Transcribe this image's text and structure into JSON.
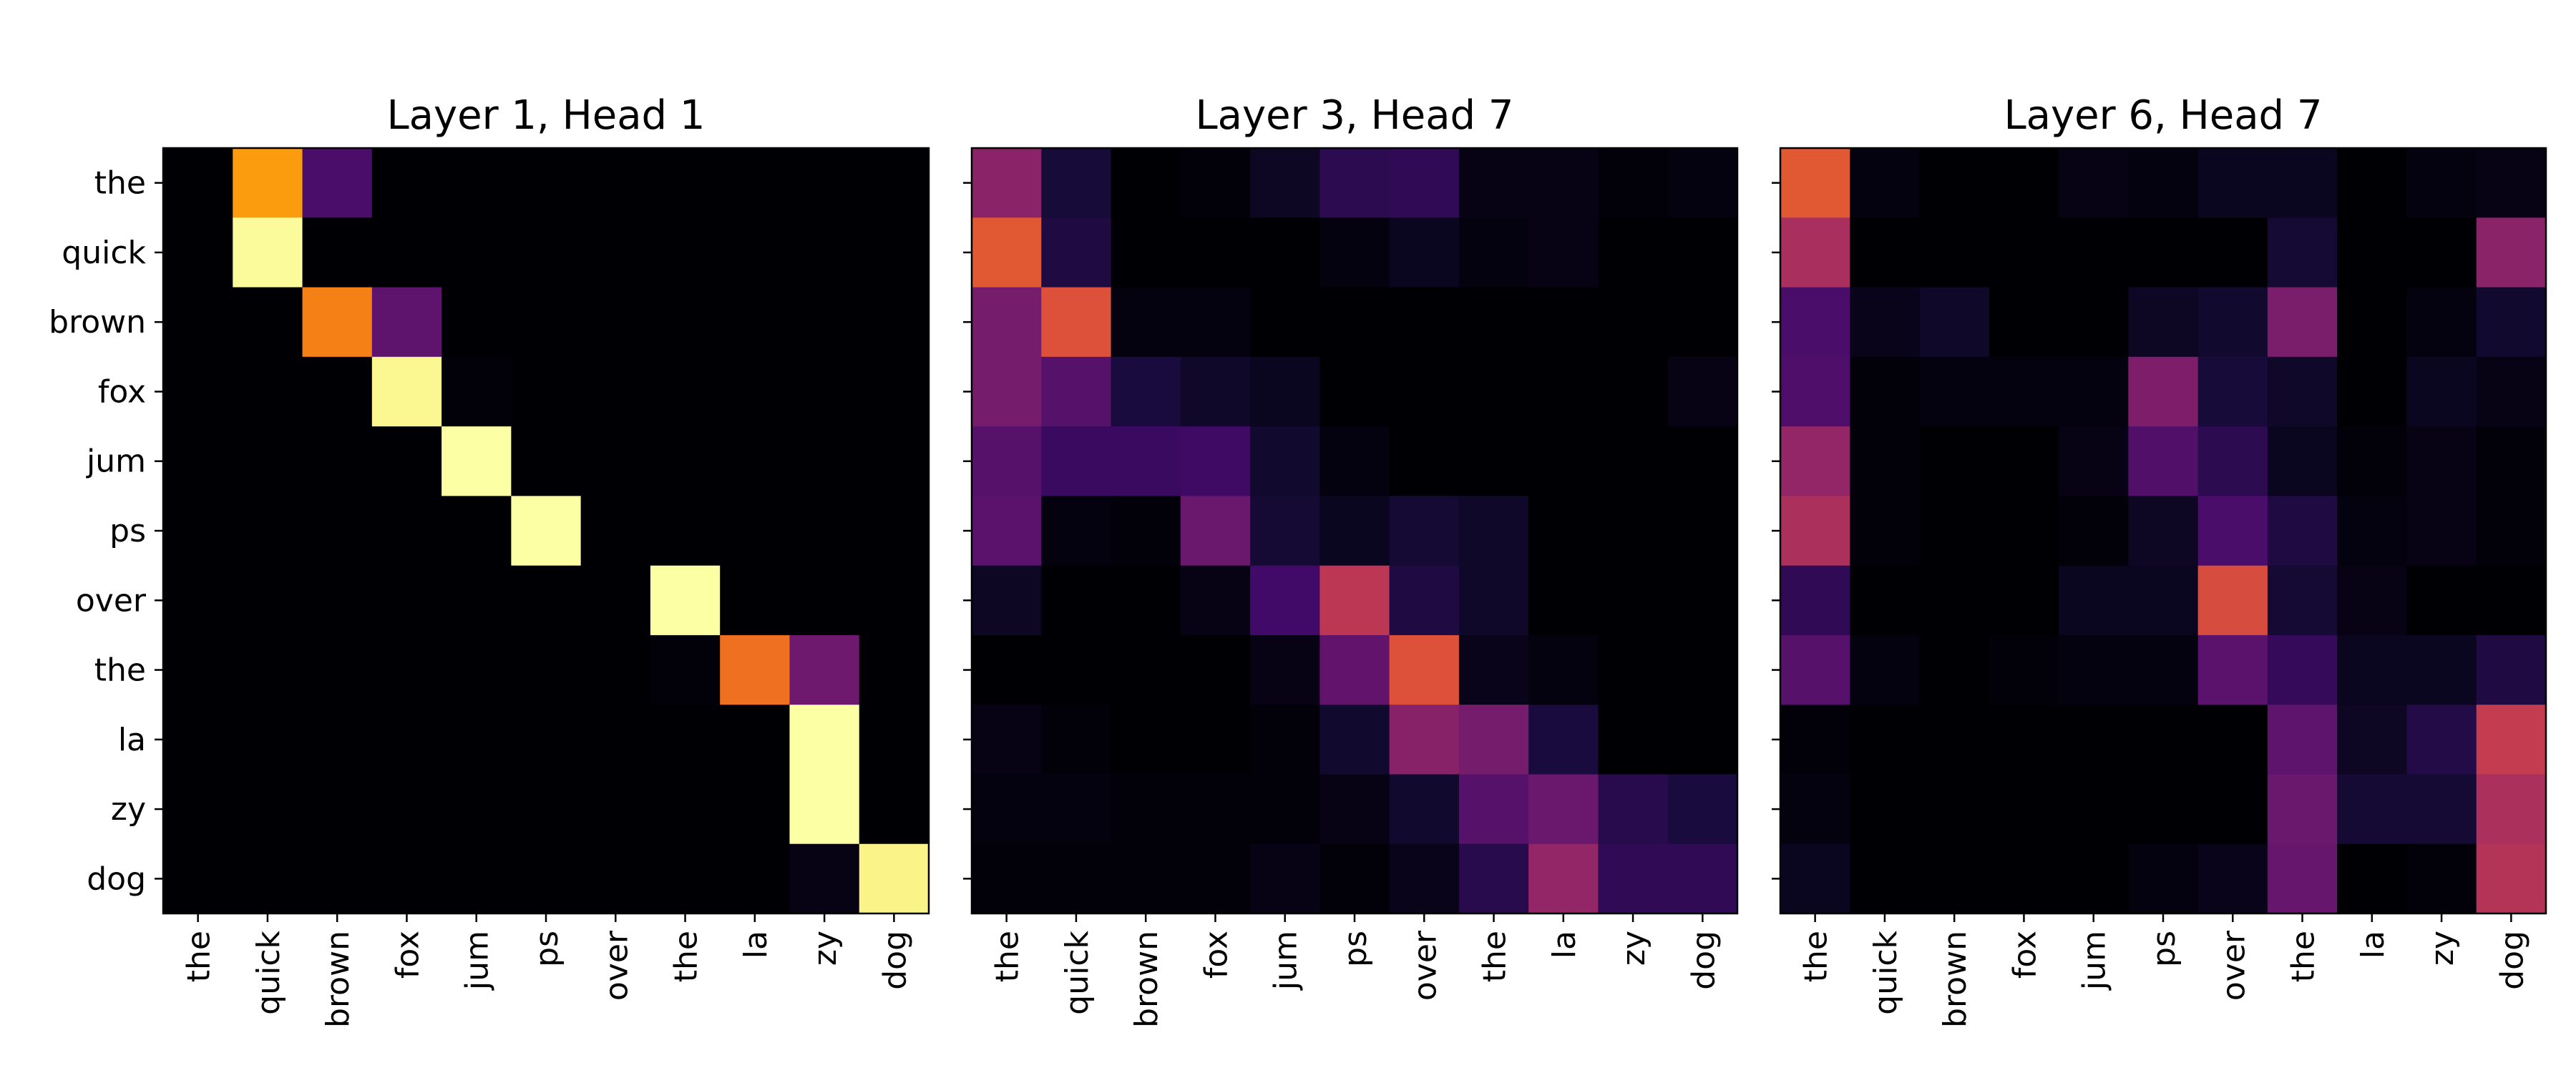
{
  "chart_data": [
    {
      "type": "heatmap",
      "title": "Layer 1, Head 1",
      "x_labels": [
        "the",
        "quick",
        "brown",
        "fox",
        "jum",
        "ps",
        "over",
        "the",
        "la",
        "zy",
        "dog"
      ],
      "y_labels": [
        "the",
        "quick",
        "brown",
        "fox",
        "jum",
        "ps",
        "over",
        "the",
        "la",
        "zy",
        "dog"
      ],
      "colormap": "inferno",
      "value_range": [
        0,
        1
      ],
      "values": [
        [
          0.0,
          0.78,
          0.22,
          0.0,
          0.0,
          0.0,
          0.0,
          0.0,
          0.0,
          0.0,
          0.0
        ],
        [
          0.0,
          0.99,
          0.0,
          0.0,
          0.0,
          0.0,
          0.0,
          0.0,
          0.0,
          0.0,
          0.0
        ],
        [
          0.0,
          0.0,
          0.72,
          0.27,
          0.0,
          0.0,
          0.0,
          0.0,
          0.0,
          0.0,
          0.0
        ],
        [
          0.0,
          0.0,
          0.0,
          0.98,
          0.01,
          0.0,
          0.0,
          0.0,
          0.0,
          0.0,
          0.0
        ],
        [
          0.0,
          0.0,
          0.0,
          0.0,
          1.0,
          0.0,
          0.0,
          0.0,
          0.0,
          0.0,
          0.0
        ],
        [
          0.0,
          0.0,
          0.0,
          0.0,
          0.0,
          1.0,
          0.0,
          0.0,
          0.0,
          0.0,
          0.0
        ],
        [
          0.0,
          0.0,
          0.0,
          0.0,
          0.0,
          0.0,
          0.0,
          1.0,
          0.0,
          0.0,
          0.0
        ],
        [
          0.0,
          0.0,
          0.0,
          0.0,
          0.0,
          0.0,
          0.0,
          0.01,
          0.68,
          0.31,
          0.0
        ],
        [
          0.0,
          0.0,
          0.0,
          0.0,
          0.0,
          0.0,
          0.0,
          0.0,
          0.0,
          1.0,
          0.0
        ],
        [
          0.0,
          0.0,
          0.0,
          0.0,
          0.0,
          0.0,
          0.0,
          0.0,
          0.0,
          1.0,
          0.0
        ],
        [
          0.0,
          0.0,
          0.0,
          0.0,
          0.0,
          0.0,
          0.0,
          0.0,
          0.0,
          0.03,
          0.97
        ]
      ]
    },
    {
      "type": "heatmap",
      "title": "Layer 3, Head 7",
      "x_labels": [
        "the",
        "quick",
        "brown",
        "fox",
        "jum",
        "ps",
        "over",
        "the",
        "la",
        "zy",
        "dog"
      ],
      "y_labels": [
        "the",
        "quick",
        "brown",
        "fox",
        "jum",
        "ps",
        "over",
        "the",
        "la",
        "zy",
        "dog"
      ],
      "colormap": "inferno",
      "value_range": [
        0,
        1
      ],
      "values": [
        [
          0.38,
          0.1,
          0.0,
          0.01,
          0.06,
          0.15,
          0.16,
          0.03,
          0.03,
          0.01,
          0.02
        ],
        [
          0.62,
          0.12,
          0.0,
          0.0,
          0.0,
          0.02,
          0.05,
          0.02,
          0.03,
          0.0,
          0.0
        ],
        [
          0.33,
          0.6,
          0.02,
          0.02,
          0.0,
          0.0,
          0.0,
          0.0,
          0.0,
          0.0,
          0.0
        ],
        [
          0.33,
          0.25,
          0.11,
          0.07,
          0.05,
          0.0,
          0.0,
          0.0,
          0.0,
          0.0,
          0.03
        ],
        [
          0.25,
          0.18,
          0.18,
          0.19,
          0.08,
          0.02,
          0.0,
          0.0,
          0.0,
          0.0,
          0.0
        ],
        [
          0.26,
          0.02,
          0.01,
          0.3,
          0.09,
          0.05,
          0.09,
          0.07,
          0.0,
          0.0,
          0.0
        ],
        [
          0.06,
          0.0,
          0.0,
          0.03,
          0.2,
          0.5,
          0.12,
          0.07,
          0.0,
          0.0,
          0.0
        ],
        [
          0.0,
          0.0,
          0.0,
          0.0,
          0.03,
          0.28,
          0.6,
          0.04,
          0.02,
          0.0,
          0.0
        ],
        [
          0.03,
          0.01,
          0.0,
          0.0,
          0.01,
          0.08,
          0.37,
          0.33,
          0.11,
          0.0,
          0.0
        ],
        [
          0.02,
          0.02,
          0.01,
          0.01,
          0.01,
          0.03,
          0.08,
          0.25,
          0.3,
          0.14,
          0.11
        ],
        [
          0.01,
          0.01,
          0.01,
          0.01,
          0.03,
          0.01,
          0.04,
          0.14,
          0.4,
          0.16,
          0.16
        ]
      ]
    },
    {
      "type": "heatmap",
      "title": "Layer 6, Head 7",
      "x_labels": [
        "the",
        "quick",
        "brown",
        "fox",
        "jum",
        "ps",
        "over",
        "the",
        "la",
        "zy",
        "dog"
      ],
      "y_labels": [
        "the",
        "quick",
        "brown",
        "fox",
        "jum",
        "ps",
        "over",
        "the",
        "la",
        "zy",
        "dog"
      ],
      "colormap": "inferno",
      "value_range": [
        0,
        1
      ],
      "values": [
        [
          0.62,
          0.02,
          0.0,
          0.0,
          0.03,
          0.02,
          0.05,
          0.05,
          0.0,
          0.02,
          0.03
        ],
        [
          0.45,
          0.0,
          0.0,
          0.0,
          0.0,
          0.0,
          0.0,
          0.09,
          0.0,
          0.0,
          0.38
        ],
        [
          0.22,
          0.04,
          0.07,
          0.0,
          0.0,
          0.06,
          0.08,
          0.34,
          0.0,
          0.02,
          0.08
        ],
        [
          0.23,
          0.01,
          0.02,
          0.02,
          0.02,
          0.35,
          0.1,
          0.07,
          0.0,
          0.05,
          0.03
        ],
        [
          0.4,
          0.01,
          0.0,
          0.0,
          0.03,
          0.24,
          0.15,
          0.05,
          0.01,
          0.03,
          0.01
        ],
        [
          0.46,
          0.01,
          0.0,
          0.0,
          0.01,
          0.06,
          0.22,
          0.12,
          0.02,
          0.03,
          0.01
        ],
        [
          0.16,
          0.0,
          0.0,
          0.0,
          0.05,
          0.05,
          0.58,
          0.09,
          0.03,
          0.0,
          0.0
        ],
        [
          0.25,
          0.02,
          0.0,
          0.01,
          0.02,
          0.02,
          0.26,
          0.17,
          0.05,
          0.05,
          0.12
        ],
        [
          0.01,
          0.0,
          0.0,
          0.0,
          0.0,
          0.0,
          0.0,
          0.27,
          0.06,
          0.13,
          0.52
        ],
        [
          0.02,
          0.0,
          0.0,
          0.0,
          0.0,
          0.0,
          0.0,
          0.3,
          0.09,
          0.09,
          0.46
        ],
        [
          0.05,
          0.0,
          0.0,
          0.0,
          0.0,
          0.02,
          0.04,
          0.29,
          0.0,
          0.01,
          0.48
        ]
      ]
    }
  ]
}
